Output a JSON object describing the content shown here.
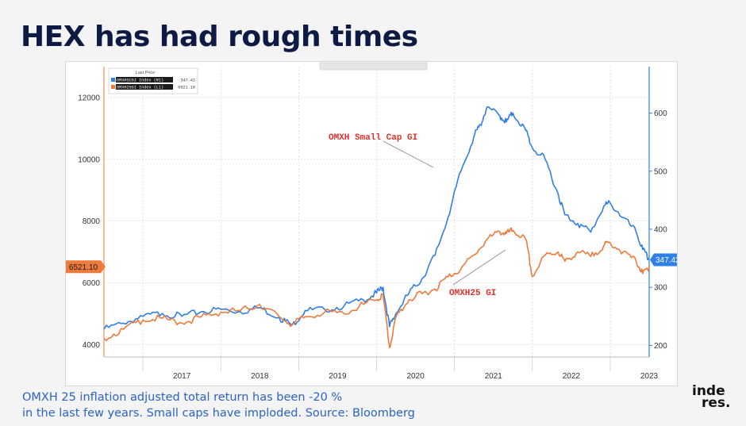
{
  "slide": {
    "title": "HEX has had rough times",
    "caption_line1": "OMXH 25 inflation adjusted total return has been -20 %",
    "caption_line2": "in the last few years. Small caps have imploded. Source: Bloomberg",
    "brand_line1": "inde",
    "brand_line2": "res."
  },
  "chart_data": {
    "type": "line",
    "title": "",
    "xlabel": "",
    "ylabel": "",
    "legend": {
      "header": "Last Price",
      "placement": "top-left",
      "entries": [
        {
          "label": "OMXHSCGI Index (R1)",
          "value": "347.42",
          "color": "#2f7fe6"
        },
        {
          "label": "OMXH25GI Index (L1)",
          "value": "6521.10",
          "color": "#ee7a3c"
        }
      ]
    },
    "x_ticks": [
      "2017",
      "2018",
      "2019",
      "2020",
      "2021",
      "2022",
      "2023"
    ],
    "x_range": [
      "2016-07-01",
      "2023-07-01"
    ],
    "ylim_left": [
      3600,
      13000
    ],
    "ylim_right": [
      180,
      680
    ],
    "y_ticks_left": [
      4000,
      6000,
      8000,
      10000,
      12000
    ],
    "y_ticks_right": [
      200,
      300,
      400,
      500,
      600
    ],
    "grid": true,
    "current_value_tags": {
      "left": {
        "label": "6521.10",
        "color": "#ee7a3c"
      },
      "right": {
        "label": "347.42",
        "color": "#2f7fe6"
      }
    },
    "annotations": [
      {
        "text": "OMXH Small Cap GI",
        "color": "#e0302a"
      },
      {
        "text": "OMXH25 GI",
        "color": "#e0302a"
      }
    ],
    "series": [
      {
        "name": "OMXH Small Cap GI",
        "axis": "right",
        "color": "#2f7fe6",
        "x": [
          "2016-07",
          "2016-10",
          "2017-01",
          "2017-04",
          "2017-07",
          "2017-10",
          "2018-01",
          "2018-04",
          "2018-07",
          "2018-10",
          "2018-12",
          "2019-02",
          "2019-05",
          "2019-08",
          "2019-11",
          "2020-01",
          "2020-02",
          "2020-03",
          "2020-04",
          "2020-06",
          "2020-08",
          "2020-10",
          "2020-12",
          "2021-02",
          "2021-04",
          "2021-05",
          "2021-06",
          "2021-08",
          "2021-09",
          "2021-10",
          "2021-12",
          "2022-01",
          "2022-03",
          "2022-05",
          "2022-06",
          "2022-08",
          "2022-10",
          "2022-12",
          "2023-01",
          "2023-03",
          "2023-05",
          "2023-06",
          "2023-07"
        ],
        "values": [
          228,
          238,
          250,
          255,
          250,
          258,
          262,
          258,
          265,
          248,
          235,
          260,
          262,
          268,
          278,
          290,
          300,
          232,
          255,
          290,
          315,
          355,
          420,
          500,
          560,
          580,
          610,
          595,
          585,
          600,
          570,
          540,
          520,
          460,
          425,
          410,
          395,
          440,
          445,
          420,
          395,
          365,
          347.42
        ]
      },
      {
        "name": "OMXH25 GI",
        "axis": "left",
        "color": "#ee7a3c",
        "x": [
          "2016-07",
          "2016-10",
          "2017-01",
          "2017-04",
          "2017-07",
          "2017-10",
          "2018-01",
          "2018-04",
          "2018-07",
          "2018-10",
          "2018-12",
          "2019-02",
          "2019-05",
          "2019-08",
          "2019-11",
          "2020-01",
          "2020-02",
          "2020-03",
          "2020-04",
          "2020-06",
          "2020-08",
          "2020-10",
          "2020-12",
          "2021-02",
          "2021-04",
          "2021-06",
          "2021-08",
          "2021-09",
          "2021-10",
          "2021-12",
          "2022-01",
          "2022-03",
          "2022-05",
          "2022-06",
          "2022-08",
          "2022-10",
          "2022-12",
          "2023-01",
          "2023-03",
          "2023-05",
          "2023-06",
          "2023-07"
        ],
        "values": [
          4200,
          4500,
          4800,
          4850,
          4700,
          4900,
          5050,
          5100,
          5300,
          4900,
          4650,
          4900,
          5050,
          5000,
          5300,
          5450,
          5600,
          3900,
          4900,
          5450,
          5650,
          5800,
          6200,
          6450,
          6900,
          7400,
          7650,
          7600,
          7700,
          7400,
          6200,
          6900,
          7000,
          6700,
          7000,
          6850,
          7200,
          7300,
          7000,
          6700,
          6300,
          6521.1
        ]
      }
    ]
  }
}
